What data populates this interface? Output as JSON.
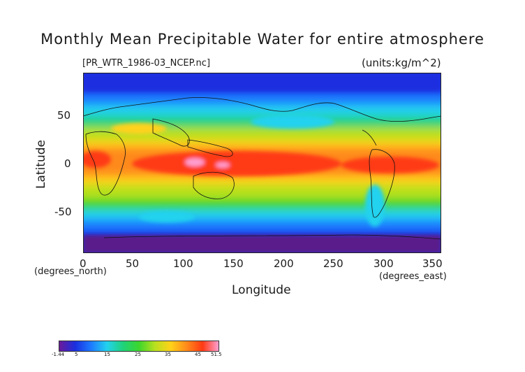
{
  "title": "Monthly Mean Precipitable Water for entire atmosphere",
  "source_label": "[PR_WTR_1986-03_NCEP.nc]",
  "units_label": "(units:kg/m^2)",
  "xlabel": "Longitude",
  "ylabel": "Latitude",
  "x_unit_note": "(degrees_east)",
  "y_unit_note": "(degrees_north)",
  "x_ticks": [
    "0",
    "50",
    "100",
    "150",
    "200",
    "250",
    "300",
    "350"
  ],
  "y_ticks": [
    "50",
    "0",
    "-50"
  ],
  "colorbar": {
    "labels": [
      "-1.44",
      "5",
      "15",
      "25",
      "35",
      "45",
      "51.5"
    ],
    "min": -1.44,
    "max": 51.5
  },
  "palette": [
    "#6a1b9a",
    "#1a2fe0",
    "#1e7bff",
    "#22d2ee",
    "#1fd27a",
    "#3cd62c",
    "#b8e01e",
    "#ffd21a",
    "#ff8a1a",
    "#ff3a14",
    "#ff9fd0"
  ],
  "chart_data": {
    "type": "heatmap",
    "title": "Monthly Mean Precipitable Water for entire atmosphere",
    "xlabel": "Longitude",
    "ylabel": "Latitude",
    "xlim": [
      0,
      360
    ],
    "ylim": [
      -90,
      90
    ],
    "value_range": [
      -1.44,
      51.5
    ],
    "units": "kg/m^2",
    "zonal_profile": [
      {
        "lat": 85,
        "value": 2
      },
      {
        "lat": 70,
        "value": 5
      },
      {
        "lat": 55,
        "value": 12
      },
      {
        "lat": 45,
        "value": 18
      },
      {
        "lat": 30,
        "value": 26
      },
      {
        "lat": 15,
        "value": 38
      },
      {
        "lat": 0,
        "value": 46
      },
      {
        "lat": -10,
        "value": 44
      },
      {
        "lat": -20,
        "value": 34
      },
      {
        "lat": -35,
        "value": 22
      },
      {
        "lat": -45,
        "value": 16
      },
      {
        "lat": -55,
        "value": 10
      },
      {
        "lat": -65,
        "value": 5
      },
      {
        "lat": -80,
        "value": 1
      }
    ]
  }
}
